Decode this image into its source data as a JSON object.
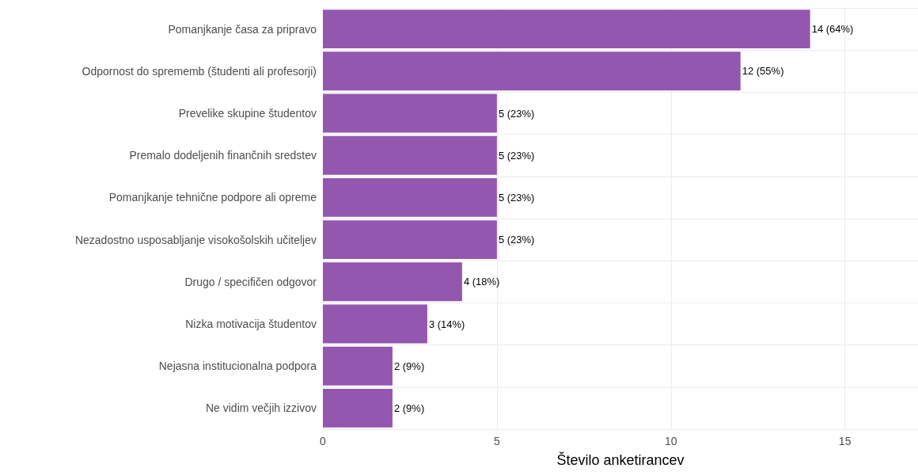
{
  "chart_data": {
    "type": "bar",
    "orientation": "horizontal",
    "xlabel": "Število anketirancev",
    "categories": [
      "Pomanjkanje časa za pripravo",
      "Odpornost do sprememb (študenti ali profesorji)",
      "Prevelike skupine študentov",
      "Premalo dodeljenih finančnih sredstev",
      "Pomanjkanje tehnične podpore ali opreme",
      "Nezadostno usposabljanje visokošolskih učiteljev",
      "Drugo / specifičen odgovor",
      "Nizka motivacija študentov",
      "Nejasna institucionalna podpora",
      "Ne vidim večjih izzivov"
    ],
    "values": [
      14,
      12,
      5,
      5,
      5,
      5,
      4,
      3,
      2,
      2
    ],
    "value_labels": [
      "14 (64%)",
      "12 (55%)",
      "5 (23%)",
      "5 (23%)",
      "5 (23%)",
      "5 (23%)",
      "4 (18%)",
      "3 (14%)",
      "2 (9%)",
      "2 (9%)"
    ],
    "color": "#9457b0",
    "xlim": [
      0,
      17.1
    ],
    "xticks": [
      0,
      5,
      10,
      15
    ],
    "grid": true
  }
}
